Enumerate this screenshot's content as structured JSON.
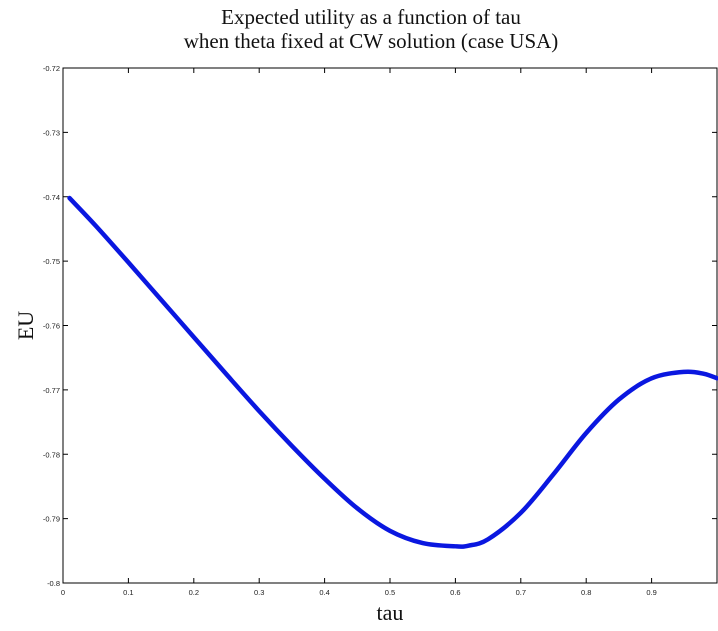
{
  "chart_data": {
    "type": "line",
    "title": "Expected utility as a function of tau",
    "subtitle": "when theta fixed at CW solution (case USA)",
    "xlabel": "tau",
    "ylabel": "EU",
    "xlim": [
      0,
      1
    ],
    "ylim": [
      -0.8,
      -0.72
    ],
    "xticks": [
      "0",
      "0.1",
      "0.2",
      "0.3",
      "0.4",
      "0.5",
      "0.6",
      "0.7",
      "0.8",
      "0.9"
    ],
    "yticks": [
      "-0.72",
      "-0.73",
      "-0.74",
      "-0.75",
      "-0.76",
      "-0.77",
      "-0.78",
      "-0.79",
      "-0.8"
    ],
    "grid": false,
    "series": [
      {
        "color": "#0a17e0",
        "x": [
          0.01,
          0.05,
          0.1,
          0.15,
          0.2,
          0.25,
          0.3,
          0.35,
          0.4,
          0.45,
          0.5,
          0.55,
          0.6,
          0.62,
          0.65,
          0.7,
          0.75,
          0.8,
          0.85,
          0.9,
          0.95,
          0.98,
          1.0
        ],
        "y": [
          -0.7402,
          -0.7445,
          -0.7502,
          -0.756,
          -0.7618,
          -0.7676,
          -0.7733,
          -0.7787,
          -0.7838,
          -0.7884,
          -0.7919,
          -0.7938,
          -0.7943,
          -0.7942,
          -0.7932,
          -0.7891,
          -0.7831,
          -0.7767,
          -0.7715,
          -0.7682,
          -0.7672,
          -0.7675,
          -0.7682
        ]
      }
    ]
  }
}
